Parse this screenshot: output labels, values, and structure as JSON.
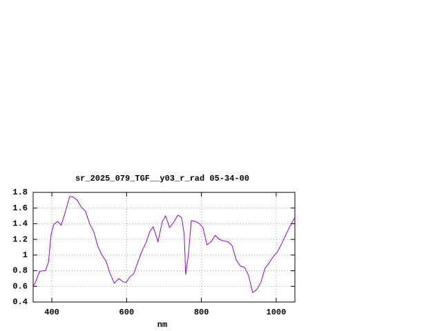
{
  "chart_data": {
    "type": "line",
    "title": "sr_2025_079_TGF__y03_r_rad 05-34-00",
    "x_label": "nm",
    "x": [
      350,
      357,
      367,
      376,
      383,
      391,
      398,
      405,
      416,
      425,
      436,
      448,
      457,
      468,
      479,
      490,
      501,
      512,
      523,
      534,
      545,
      556,
      567,
      579,
      590,
      599,
      608,
      619,
      630,
      641,
      652,
      662,
      671,
      684,
      695,
      704,
      715,
      726,
      737,
      747,
      754,
      758,
      765,
      773,
      784,
      795,
      804,
      815,
      826,
      837,
      848,
      860,
      871,
      882,
      893,
      904,
      916,
      926,
      937,
      948,
      959,
      970,
      981,
      992,
      1003,
      1014,
      1025,
      1036,
      1050
    ],
    "series": [
      {
        "color": "#9400d3",
        "values": [
          0.6,
          0.66,
          0.79,
          0.8,
          0.8,
          0.91,
          1.26,
          1.39,
          1.43,
          1.38,
          1.55,
          1.75,
          1.74,
          1.7,
          1.61,
          1.56,
          1.4,
          1.3,
          1.11,
          1.0,
          0.92,
          0.76,
          0.64,
          0.7,
          0.66,
          0.65,
          0.72,
          0.76,
          0.91,
          1.05,
          1.16,
          1.3,
          1.36,
          1.17,
          1.42,
          1.5,
          1.35,
          1.42,
          1.51,
          1.48,
          1.26,
          0.75,
          1.0,
          1.44,
          1.43,
          1.4,
          1.35,
          1.13,
          1.17,
          1.25,
          1.2,
          1.18,
          1.17,
          1.12,
          0.94,
          0.86,
          0.84,
          0.74,
          0.52,
          0.56,
          0.65,
          0.83,
          0.9,
          0.98,
          1.04,
          1.14,
          1.25,
          1.36,
          1.48
        ]
      }
    ],
    "xlim": [
      350,
      1050
    ],
    "xticks": [
      400,
      600,
      800,
      1000
    ],
    "ylim": [
      0.4,
      1.8
    ],
    "yticks": [
      0.4,
      0.6,
      0.8,
      1,
      1.2,
      1.4,
      1.6,
      1.8
    ],
    "grid": true
  }
}
